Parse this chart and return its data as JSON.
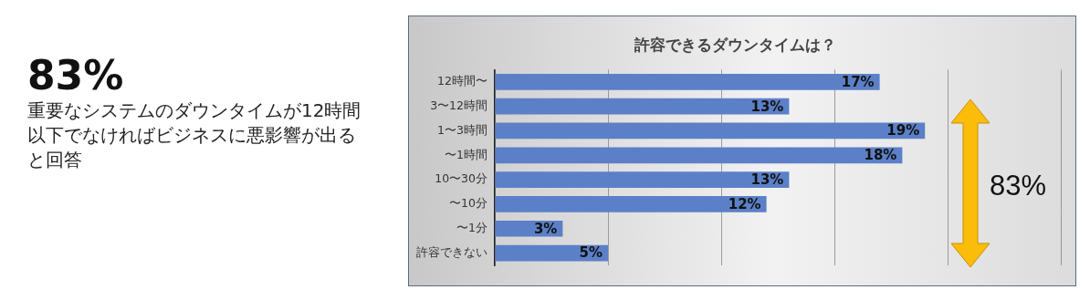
{
  "chart_data": {
    "type": "bar",
    "orientation": "horizontal",
    "title": "許容できるダウンタイムは？",
    "categories": [
      "12時間〜",
      "3〜12時間",
      "1〜3時間",
      "〜1時間",
      "10〜30分",
      "〜10分",
      "〜1分",
      "許容できない"
    ],
    "values": [
      17,
      13,
      19,
      18,
      13,
      12,
      3,
      5
    ],
    "value_labels": [
      "17%",
      "13%",
      "19%",
      "18%",
      "13%",
      "12%",
      "3%",
      "5%"
    ],
    "color": "#5b80c8",
    "xlim": [
      0,
      25
    ],
    "xticks": [
      {
        "value": 0,
        "label": null
      },
      {
        "value": 5,
        "label": null
      },
      {
        "value": 10,
        "label": null
      },
      {
        "value": 15,
        "label": null
      },
      {
        "value": 20,
        "label": null
      },
      {
        "value": 25,
        "label": null
      }
    ],
    "tick_labels": "y",
    "grid": "x",
    "legend": false,
    "annotations": [
      "83%",
      "重要なシステムのダウンタイムが12時間以下でなければビジネスに悪影響が出ると回答",
      "83%"
    ]
  }
}
